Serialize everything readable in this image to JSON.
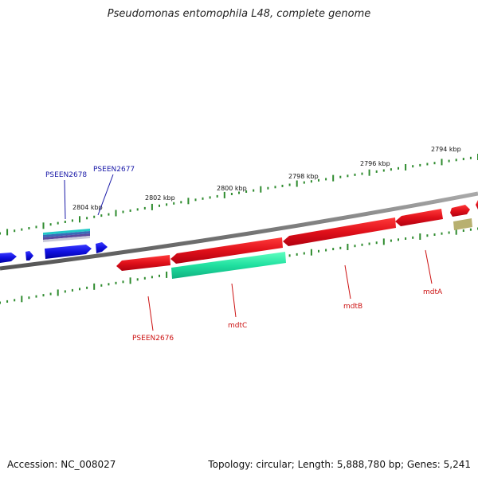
{
  "title": "Pseudomonas entomophila L48, complete genome",
  "footer": {
    "accession": "Accession: NC_008027",
    "summary": "Topology: circular; Length: 5,888,780 bp; Genes: 5,241"
  },
  "ruler": {
    "labels": [
      "2794 kbp",
      "2796 kbp",
      "2798 kbp",
      "2800 kbp",
      "2802 kbp",
      "2804 kbp"
    ]
  },
  "genes": {
    "labels": [
      "PSEEN2678",
      "PSEEN2677",
      "PSEEN2676",
      "mdtC",
      "mdtB",
      "mdtA"
    ]
  },
  "colors": {
    "backbone": "#888888",
    "tick": "#2e8b2e",
    "forward_gene": "#e8141a",
    "reverse_gene": "#1515e0",
    "rna": "#20e0a0",
    "misc": "#b8b070",
    "label_blue": "#1a1aa8",
    "label_red": "#cc1111"
  }
}
